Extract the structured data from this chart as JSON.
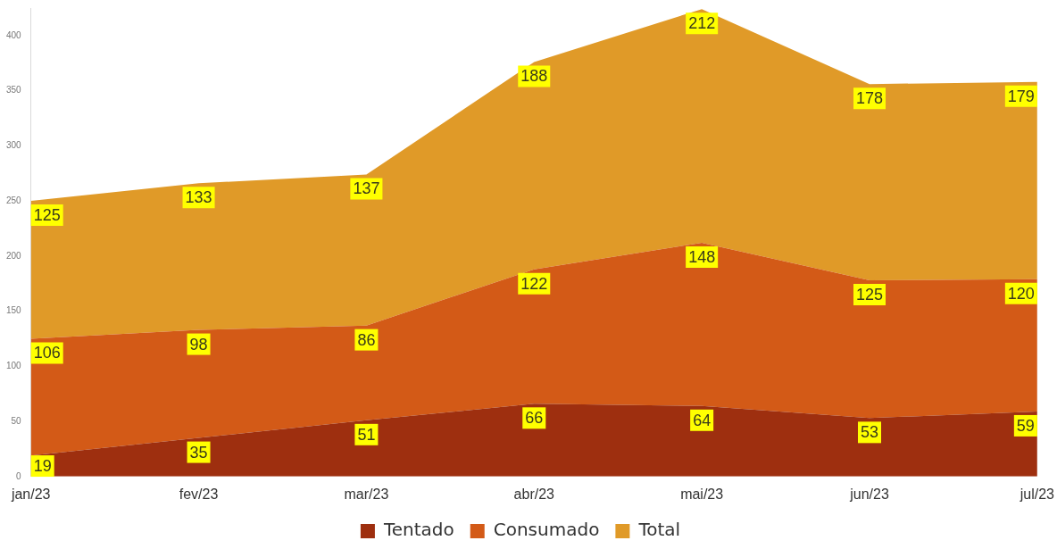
{
  "chart_data": {
    "type": "area",
    "stacked": true,
    "data_labels": true,
    "legend": "bottom",
    "marker": "none",
    "categories": [
      "jan/23",
      "fev/23",
      "mar/23",
      "abr/23",
      "mai/23",
      "jun/23",
      "jul/23"
    ],
    "ylim": [
      0,
      425
    ],
    "yticks": [
      0,
      50,
      100,
      150,
      200,
      250,
      300,
      350,
      400
    ],
    "series": [
      {
        "name": "Tentado",
        "color": "#9e2f0f",
        "values": [
          19,
          35,
          51,
          66,
          64,
          53,
          59
        ]
      },
      {
        "name": "Consumado",
        "color": "#d35a17",
        "values": [
          106,
          98,
          86,
          122,
          148,
          125,
          120
        ]
      },
      {
        "name": "Total",
        "color": "#e09a28",
        "values": [
          125,
          133,
          137,
          188,
          212,
          178,
          179
        ]
      }
    ]
  }
}
